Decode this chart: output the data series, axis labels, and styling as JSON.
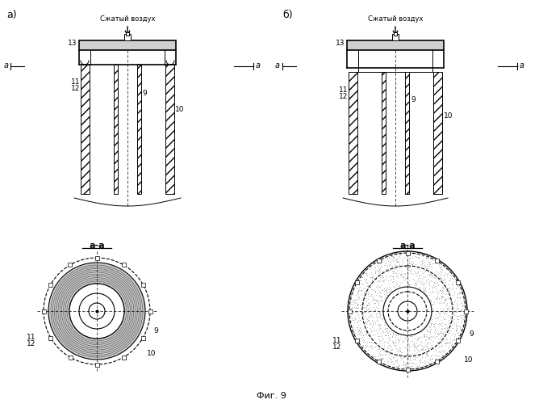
{
  "title": "Фиг. 9",
  "label_a": "а)",
  "label_b": "б)",
  "text_air": "Сжатый воздух",
  "section_label": "а-а",
  "bg_color": "#ffffff",
  "line_color": "#000000",
  "fig_label": "Фиг. 9"
}
